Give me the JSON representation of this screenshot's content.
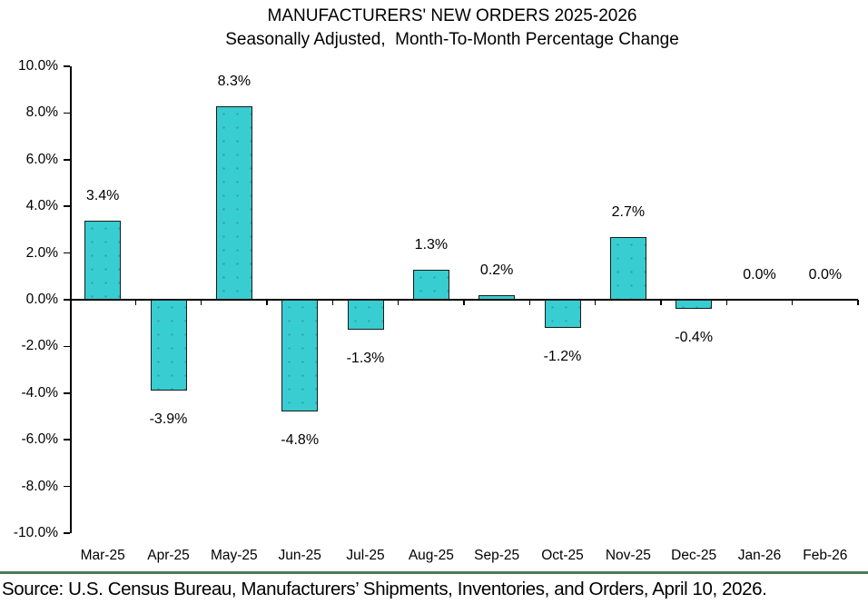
{
  "title": "MANUFACTURERS' NEW ORDERS 2025-2026",
  "subtitle": "Seasonally Adjusted,  Month-To-Month Percentage Change",
  "source": "Source: U.S. Census Bureau, Manufacturers’ Shipments, Inventories, and Orders, April 10, 2026.",
  "colors": {
    "bar_fill": "#38cdd1",
    "bar_border": "#1a1a1a",
    "axis": "#000000",
    "text": "#000000",
    "divider_green": "#4d7a55",
    "background": "#ffffff"
  },
  "chart_data": {
    "type": "bar",
    "title": "MANUFACTURERS' NEW ORDERS 2025-2026",
    "subtitle": "Seasonally Adjusted,  Month-To-Month Percentage Change",
    "categories": [
      "Mar-25",
      "Apr-25",
      "May-25",
      "Jun-25",
      "Jul-25",
      "Aug-25",
      "Sep-25",
      "Oct-25",
      "Nov-25",
      "Dec-25",
      "Jan-26",
      "Feb-26"
    ],
    "values": [
      3.4,
      -3.9,
      8.3,
      -4.8,
      -1.3,
      1.3,
      0.2,
      -1.2,
      2.7,
      -0.4,
      0.0,
      0.0
    ],
    "data_labels": [
      "3.4%",
      "-3.9%",
      "8.3%",
      "-4.8%",
      "-1.3%",
      "1.3%",
      "0.2%",
      "-1.2%",
      "2.7%",
      "-0.4%",
      "0.0%",
      "0.0%"
    ],
    "xlabel": "",
    "ylabel": "",
    "ylim": [
      -10.0,
      10.0
    ],
    "ytick_step": 2.0,
    "ytick_labels": [
      "10.0%",
      "8.0%",
      "6.0%",
      "4.0%",
      "2.0%",
      "0.0%",
      "-2.0%",
      "-4.0%",
      "-6.0%",
      "-8.0%",
      "-10.0%"
    ],
    "grid": false,
    "legend": false
  }
}
